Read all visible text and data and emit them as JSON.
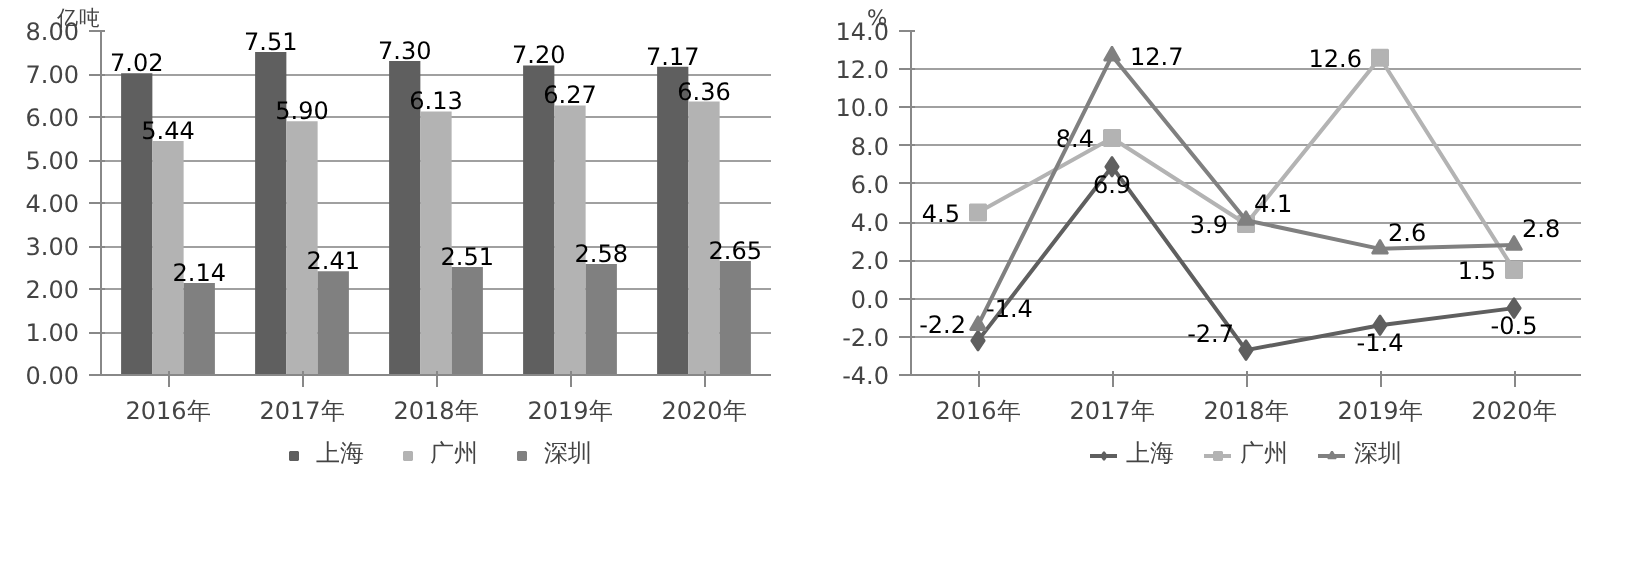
{
  "chart_data": [
    {
      "type": "bar",
      "ylabel": "亿吨",
      "categories": [
        "2016年",
        "2017年",
        "2018年",
        "2019年",
        "2020年"
      ],
      "series": [
        {
          "name": "上海",
          "color": "#5f5f5f",
          "values": [
            7.02,
            7.51,
            7.3,
            7.2,
            7.17
          ],
          "value_labels": [
            "7.02",
            "7.51",
            "7.30",
            "7.20",
            "7.17"
          ]
        },
        {
          "name": "广州",
          "color": "#b3b3b3",
          "values": [
            5.44,
            5.9,
            6.13,
            6.27,
            6.36
          ],
          "value_labels": [
            "5.44",
            "5.90",
            "6.13",
            "6.27",
            "6.36"
          ]
        },
        {
          "name": "深圳",
          "color": "#808080",
          "values": [
            2.14,
            2.41,
            2.51,
            2.58,
            2.65
          ],
          "value_labels": [
            "2.14",
            "2.41",
            "2.51",
            "2.58",
            "2.65"
          ]
        }
      ],
      "ylim": [
        0,
        8
      ],
      "yticks": [
        {
          "value": 0,
          "label": "0.00"
        },
        {
          "value": 1,
          "label": "1.00"
        },
        {
          "value": 2,
          "label": "2.00"
        },
        {
          "value": 3,
          "label": "3.00"
        },
        {
          "value": 4,
          "label": "4.00"
        },
        {
          "value": 5,
          "label": "5.00"
        },
        {
          "value": 6,
          "label": "6.00"
        },
        {
          "value": 7,
          "label": "7.00"
        },
        {
          "value": 8,
          "label": "8.00"
        }
      ],
      "grid": "y",
      "legend": "bottom"
    },
    {
      "type": "line",
      "ylabel": "%",
      "categories": [
        "2016年",
        "2017年",
        "2018年",
        "2019年",
        "2020年"
      ],
      "series": [
        {
          "name": "上海",
          "color": "#5f5f5f",
          "marker": "diamond",
          "values": [
            -2.2,
            6.9,
            -2.7,
            -1.4,
            -0.5
          ]
        },
        {
          "name": "广州",
          "color": "#b3b3b3",
          "marker": "square",
          "values": [
            4.5,
            8.4,
            3.9,
            12.6,
            1.5
          ]
        },
        {
          "name": "深圳",
          "color": "#808080",
          "marker": "triangle",
          "values": [
            -1.4,
            12.7,
            4.1,
            2.6,
            2.8
          ]
        }
      ],
      "ylim": [
        -4,
        14
      ],
      "yticks": [
        {
          "value": -4,
          "label": "-4.0"
        },
        {
          "value": -2,
          "label": "-2.0"
        },
        {
          "value": 0,
          "label": "0.0"
        },
        {
          "value": 2,
          "label": "2.0"
        },
        {
          "value": 4,
          "label": "4.0"
        },
        {
          "value": 6,
          "label": "6.0"
        },
        {
          "value": 8,
          "label": "8.0"
        },
        {
          "value": 10,
          "label": "10.0"
        },
        {
          "value": 12,
          "label": "12.0"
        },
        {
          "value": 14,
          "label": "14.0"
        }
      ],
      "grid": "y",
      "legend": "bottom",
      "data_labels": true,
      "line_style": "solid"
    }
  ]
}
